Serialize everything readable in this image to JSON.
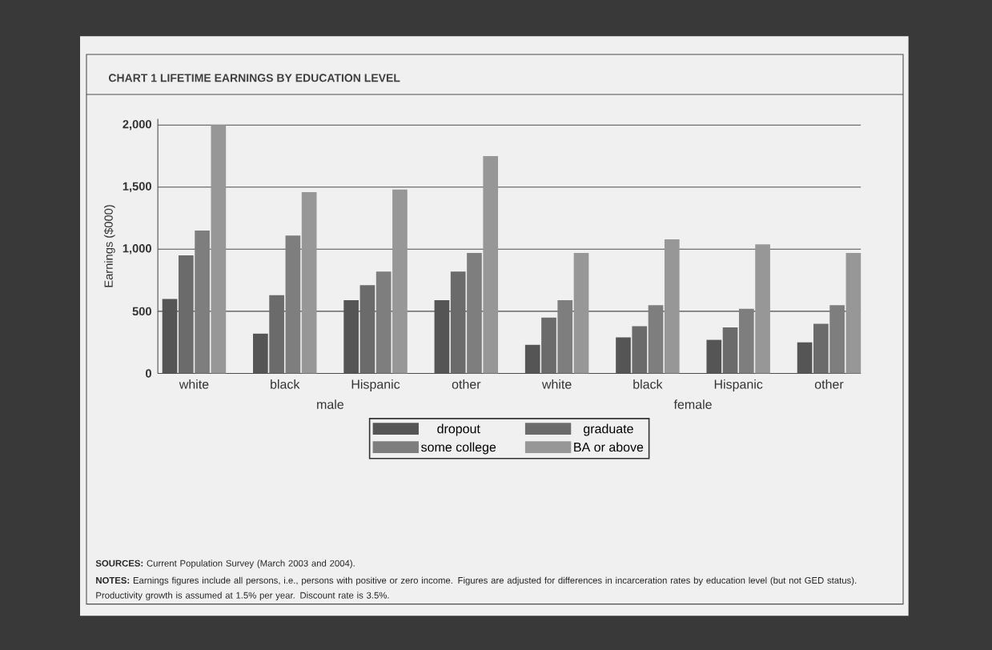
{
  "chart_data": {
    "type": "bar",
    "title": "CHART 1   LIFETIME EARNINGS BY EDUCATION LEVEL",
    "ylabel": "Earnings ($000)",
    "categories": [
      "white",
      "black",
      "Hispanic",
      "other",
      "white",
      "black",
      "Hispanic",
      "other"
    ],
    "series": [
      {
        "name": "dropout",
        "color": "#555555",
        "values": [
          600,
          320,
          590,
          590,
          230,
          290,
          270,
          250
        ]
      },
      {
        "name": "graduate",
        "color": "#6b6b6b",
        "values": [
          950,
          630,
          710,
          820,
          450,
          380,
          370,
          400
        ]
      },
      {
        "name": "some college",
        "color": "#7e7e7e",
        "values": [
          1150,
          1110,
          820,
          970,
          590,
          550,
          520,
          550
        ]
      },
      {
        "name": "BA or above",
        "color": "#979797",
        "values": [
          2000,
          1460,
          1480,
          1750,
          970,
          1080,
          1040,
          970
        ]
      }
    ],
    "ylim": [
      0,
      2050
    ],
    "yticks": [
      0,
      500,
      {
        "value": 1000,
        "label": "1,000"
      },
      {
        "value": 1500,
        "label": "1,500"
      },
      {
        "value": 2000,
        "label": "2,000"
      }
    ],
    "grid": "y",
    "legend": "bottom",
    "annotations": [
      "male",
      "female",
      "**SOURCES:** Current Population Survey (March 2003 and 2004).",
      "**NOTES:** Earnings figures include all persons, i.e., persons with positive or zero income. Figures are adjusted for differences in incarceration rates by education level (but not GED status). Productivity growth is assumed at 1.5% per year. Discount rate is 3.5%."
    ]
  }
}
